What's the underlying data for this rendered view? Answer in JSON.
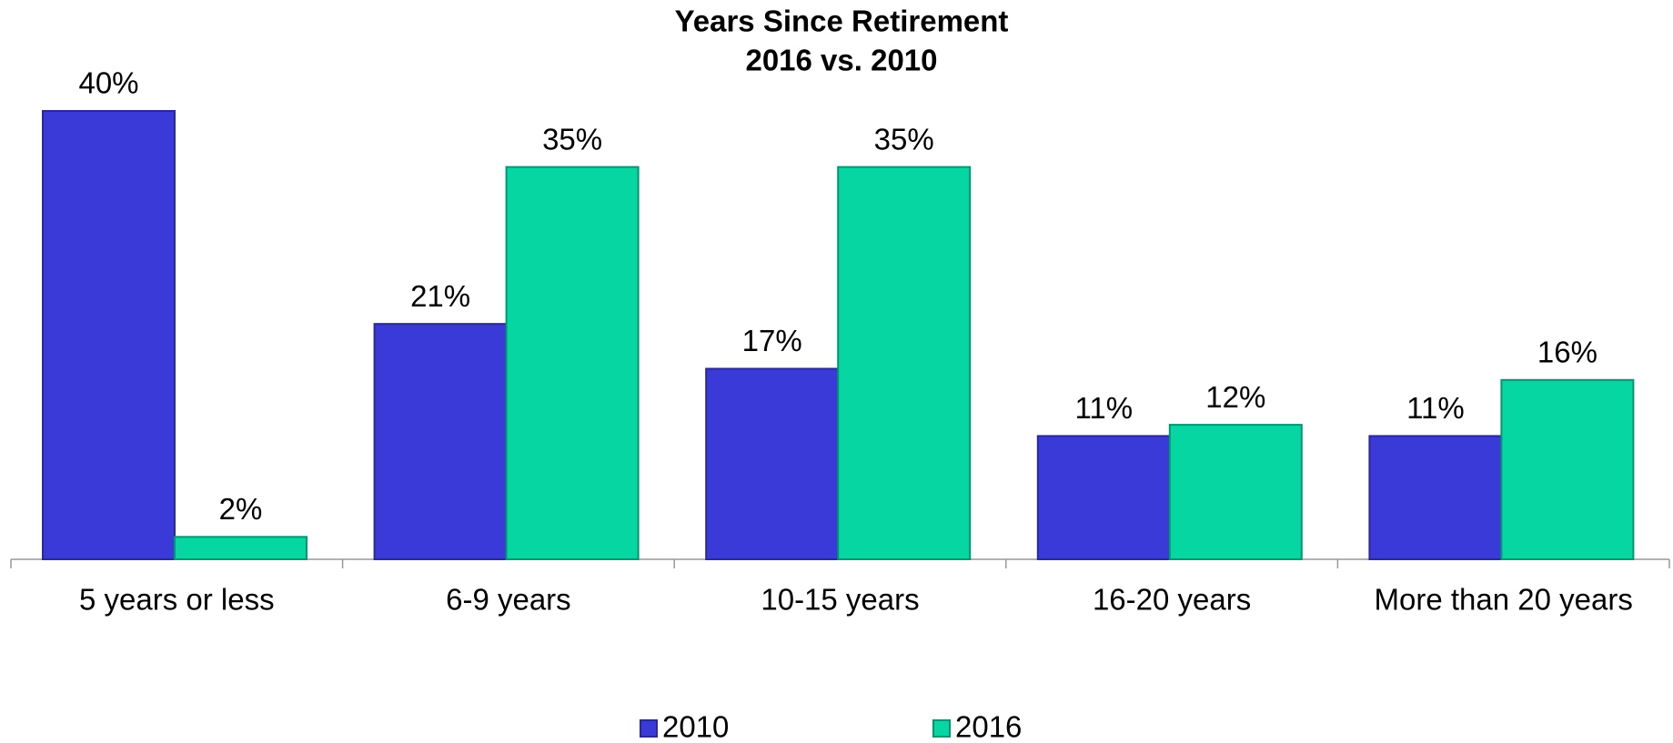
{
  "chart_data": {
    "type": "bar",
    "title": "Years Since Retirement",
    "subtitle": "2016 vs. 2010",
    "categories": [
      "5 years or less",
      "6-9 years",
      "10-15 years",
      "16-20 years",
      "More than 20 years"
    ],
    "series": [
      {
        "name": "2010",
        "color": "#3a3ad8",
        "values": [
          40,
          21,
          17,
          11,
          11
        ],
        "value_labels": [
          "40%",
          "21%",
          "17%",
          "11%",
          "11%"
        ]
      },
      {
        "name": "2016",
        "color": "#05d6a2",
        "values": [
          2,
          35,
          35,
          12,
          16
        ],
        "value_labels": [
          "2%",
          "35%",
          "35%",
          "12%",
          "16%"
        ]
      }
    ],
    "legend": "bottom"
  }
}
